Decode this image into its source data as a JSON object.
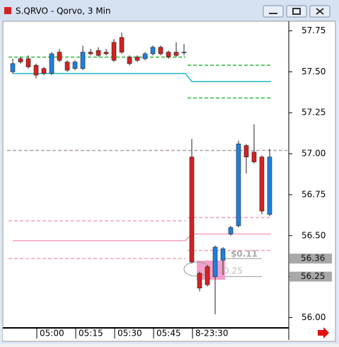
{
  "window": {
    "title": "S.QRVO - Qorvo, 3 Min"
  },
  "chart_data": {
    "type": "candlestick",
    "ylim": [
      55.95,
      57.8
    ],
    "yticks": [
      {
        "value": 56,
        "label": "56.00"
      },
      56.25,
      {
        "value": 56.5,
        "label": "56.50"
      },
      56.75,
      {
        "value": 57,
        "label": "57.00"
      },
      57.25,
      {
        "value": 57.5,
        "label": "57.50"
      },
      57.75
    ],
    "xticks": [
      {
        "value": 3,
        "label": "05:00"
      },
      {
        "value": 8,
        "label": "05:15"
      },
      {
        "value": 13,
        "label": "05:30"
      },
      {
        "value": 18,
        "label": "05:45"
      },
      {
        "value": 23,
        "label": "8-23:30"
      }
    ],
    "up_color": "#1f7fe0",
    "down_color": "#d42222",
    "open": [
      57.5,
      57.58,
      57.58,
      57.54,
      57.52,
      57.49,
      57.62,
      57.56,
      57.52,
      57.52,
      57.62,
      57.63,
      57.62,
      57.68,
      57.71,
      57.59,
      57.59,
      57.58,
      57.61,
      57.65,
      57.62,
      57.62,
      57.62,
      56.98,
      56.27,
      56.31,
      56.25,
      56.35,
      56.51,
      56.56,
      57.05,
      57.01,
      56.98,
      56.63
    ],
    "high": [
      57.58,
      57.59,
      57.6,
      57.55,
      57.53,
      57.62,
      57.64,
      57.57,
      57.57,
      57.66,
      57.64,
      57.65,
      57.64,
      57.7,
      57.74,
      57.6,
      57.6,
      57.62,
      57.66,
      57.66,
      57.63,
      57.68,
      57.67,
      57.09,
      56.28,
      56.32,
      56.44,
      56.43,
      56.56,
      57.08,
      57.06,
      57.18,
      56.99,
      57.03
    ],
    "low": [
      57.49,
      57.55,
      57.52,
      57.46,
      57.48,
      57.48,
      57.56,
      57.5,
      57.51,
      57.51,
      57.6,
      57.59,
      57.6,
      57.56,
      57.61,
      57.54,
      57.56,
      57.57,
      57.6,
      57.6,
      57.58,
      57.59,
      57.6,
      56.33,
      56.16,
      56.19,
      56.02,
      56.26,
      56.5,
      56.55,
      56.88,
      56.94,
      56.63,
      56.62
    ],
    "close": [
      57.55,
      57.56,
      57.53,
      57.48,
      57.49,
      57.61,
      57.57,
      57.51,
      57.56,
      57.62,
      57.61,
      57.6,
      57.61,
      57.57,
      57.62,
      57.55,
      57.57,
      57.61,
      57.65,
      57.61,
      57.59,
      57.6,
      57.62,
      56.34,
      56.18,
      56.2,
      56.43,
      56.42,
      56.55,
      57.06,
      56.98,
      56.95,
      56.65,
      56.98
    ],
    "levels": [
      {
        "color": "#2dbb3c",
        "dash": true,
        "values": [
          57.59,
          57.54
        ]
      },
      {
        "color": "#2dbb3c",
        "dash": true,
        "values": [
          null,
          57.34
        ]
      },
      {
        "color": "#1fb8c8",
        "dash": false,
        "values": [
          57.49,
          57.44
        ]
      },
      {
        "color": "#f4a0c4",
        "dash": true,
        "values": [
          56.59,
          56.61
        ]
      },
      {
        "color": "#f4a0c4",
        "dash": false,
        "values": [
          56.47,
          56.51
        ]
      },
      {
        "color": "#f4a0c4",
        "dash": true,
        "values": [
          56.36,
          56.41
        ]
      },
      {
        "color": "#b0a0a8",
        "dash": true,
        "values": [
          57.02,
          57.02
        ]
      }
    ],
    "price_markers": [
      56.36,
      56.25
    ],
    "annotations": [
      "$0.11",
      "0.25"
    ]
  }
}
